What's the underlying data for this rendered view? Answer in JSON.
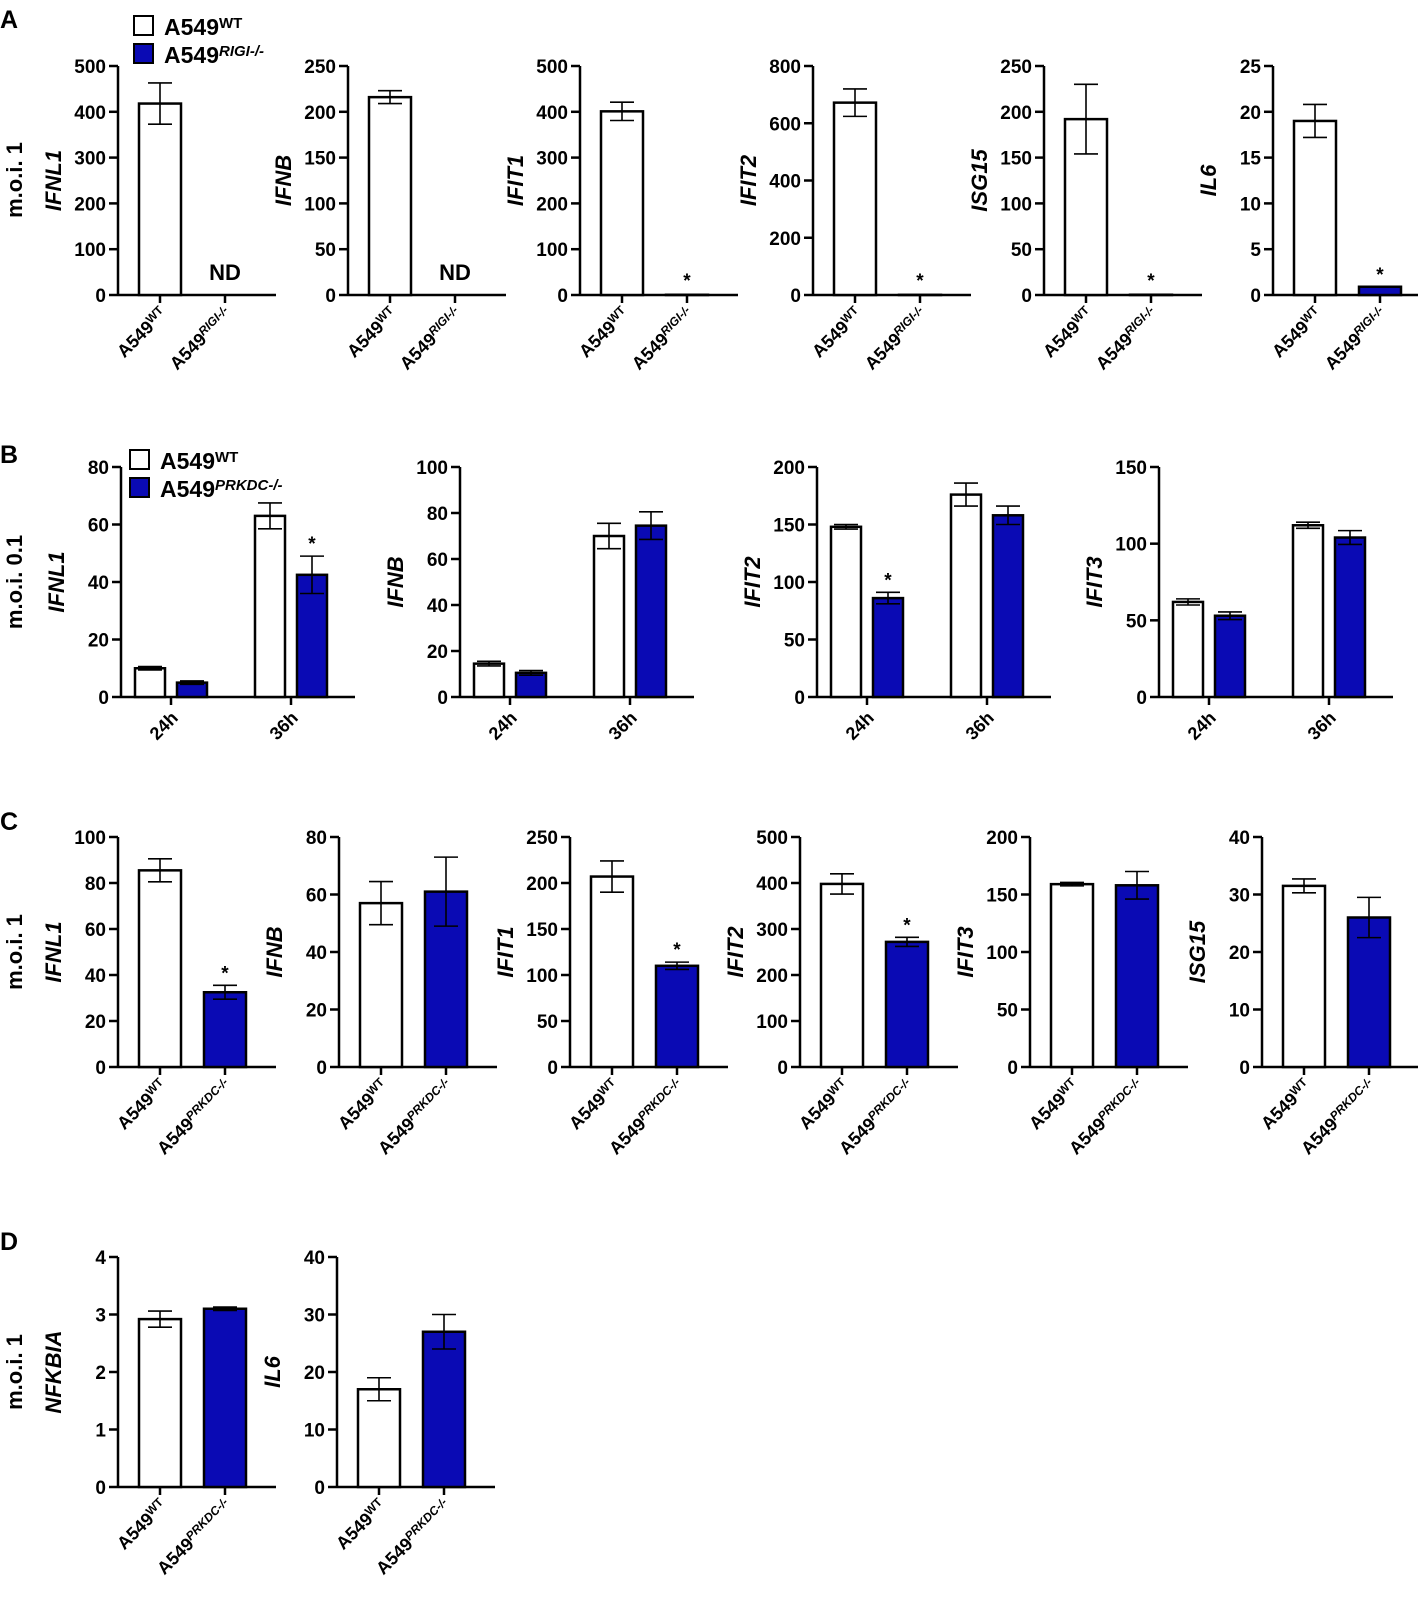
{
  "figure": {
    "colors": {
      "wt_fill": "#ffffff",
      "ko_fill": "#0a0ab4",
      "stroke": "#000000"
    },
    "panels": [
      {
        "letter": "A",
        "moi": "m.o.i. 1"
      },
      {
        "letter": "B",
        "moi": "m.o.i. 0.1"
      },
      {
        "letter": "C",
        "moi": "m.o.i. 1"
      },
      {
        "letter": "D",
        "moi": "m.o.i. 1"
      }
    ],
    "legends": [
      {
        "wt_base": "A549",
        "wt_sup": "WT",
        "ko_base": "A549",
        "ko_sup": "RIGI-/-"
      },
      {
        "wt_base": "A549",
        "wt_sup": "WT",
        "ko_base": "A549",
        "ko_sup": "PRKDC-/-"
      }
    ]
  },
  "chart_data": [
    {
      "panel": "A",
      "type": "bar",
      "ylabel": "IFNL1",
      "ylim": [
        0,
        500
      ],
      "yticks": [
        0,
        100,
        200,
        300,
        400,
        500
      ],
      "mode": "single",
      "categories": [
        {
          "base": "A549",
          "sup": "WT"
        },
        {
          "base": "A549",
          "sup": "RIGI-/-"
        }
      ],
      "values": [
        418,
        null
      ],
      "errors": [
        45,
        null
      ],
      "annotations": [
        "",
        "ND"
      ]
    },
    {
      "panel": "A",
      "type": "bar",
      "ylabel": "IFNB",
      "ylim": [
        0,
        250
      ],
      "yticks": [
        0,
        50,
        100,
        150,
        200,
        250
      ],
      "mode": "single",
      "categories": [
        {
          "base": "A549",
          "sup": "WT"
        },
        {
          "base": "A549",
          "sup": "RIGI-/-"
        }
      ],
      "values": [
        216,
        null
      ],
      "errors": [
        7,
        null
      ],
      "annotations": [
        "",
        "ND"
      ]
    },
    {
      "panel": "A",
      "type": "bar",
      "ylabel": "IFIT1",
      "ylim": [
        0,
        500
      ],
      "yticks": [
        0,
        100,
        200,
        300,
        400,
        500
      ],
      "mode": "single",
      "categories": [
        {
          "base": "A549",
          "sup": "WT"
        },
        {
          "base": "A549",
          "sup": "RIGI-/-"
        }
      ],
      "values": [
        401,
        0.5
      ],
      "errors": [
        20,
        0
      ],
      "annotations": [
        "",
        "*"
      ]
    },
    {
      "panel": "A",
      "type": "bar",
      "ylabel": "IFIT2",
      "ylim": [
        0,
        800
      ],
      "yticks": [
        0,
        200,
        400,
        600,
        800
      ],
      "mode": "single",
      "categories": [
        {
          "base": "A549",
          "sup": "WT"
        },
        {
          "base": "A549",
          "sup": "RIGI-/-"
        }
      ],
      "values": [
        672,
        0.5
      ],
      "errors": [
        48,
        0
      ],
      "annotations": [
        "",
        "*"
      ]
    },
    {
      "panel": "A",
      "type": "bar",
      "ylabel": "ISG15",
      "ylim": [
        0,
        250
      ],
      "yticks": [
        0,
        50,
        100,
        150,
        200,
        250
      ],
      "mode": "single",
      "categories": [
        {
          "base": "A549",
          "sup": "WT"
        },
        {
          "base": "A549",
          "sup": "RIGI-/-"
        }
      ],
      "values": [
        192,
        0.3
      ],
      "errors": [
        38,
        0
      ],
      "annotations": [
        "",
        "*"
      ]
    },
    {
      "panel": "A",
      "type": "bar",
      "ylabel": "IL6",
      "ylim": [
        0,
        25
      ],
      "yticks": [
        0,
        5,
        10,
        15,
        20,
        25
      ],
      "mode": "single",
      "categories": [
        {
          "base": "A549",
          "sup": "WT"
        },
        {
          "base": "A549",
          "sup": "RIGI-/-"
        }
      ],
      "values": [
        19,
        0.9
      ],
      "errors": [
        1.8,
        0
      ],
      "annotations": [
        "",
        "*"
      ]
    },
    {
      "panel": "B",
      "type": "bar",
      "ylabel": "IFNL1",
      "ylim": [
        0,
        80
      ],
      "yticks": [
        0,
        20,
        40,
        60,
        80
      ],
      "mode": "grouped",
      "categories": [
        "24h",
        "36h"
      ],
      "series": [
        {
          "name": "A549WT",
          "values": [
            10,
            63
          ],
          "errors": [
            0.6,
            4.5
          ]
        },
        {
          "name": "A549PRKDC-/-",
          "values": [
            5,
            42.5
          ],
          "errors": [
            0.6,
            6.5
          ]
        }
      ],
      "annotations": [
        "",
        "",
        "",
        "*"
      ]
    },
    {
      "panel": "B",
      "type": "bar",
      "ylabel": "IFNB",
      "ylim": [
        0,
        100
      ],
      "yticks": [
        0,
        20,
        40,
        60,
        80,
        100
      ],
      "mode": "grouped",
      "categories": [
        "24h",
        "36h"
      ],
      "series": [
        {
          "name": "A549WT",
          "values": [
            14.5,
            70
          ],
          "errors": [
            1,
            5.5
          ]
        },
        {
          "name": "A549PRKDC-/-",
          "values": [
            10.5,
            74.5
          ],
          "errors": [
            1,
            6
          ]
        }
      ],
      "annotations": [
        "",
        "",
        "",
        ""
      ]
    },
    {
      "panel": "B",
      "type": "bar",
      "ylabel": "IFIT2",
      "ylim": [
        0,
        200
      ],
      "yticks": [
        0,
        50,
        100,
        150,
        200
      ],
      "mode": "grouped",
      "categories": [
        "24h",
        "36h"
      ],
      "series": [
        {
          "name": "A549WT",
          "values": [
            148,
            176
          ],
          "errors": [
            2,
            10
          ]
        },
        {
          "name": "A549PRKDC-/-",
          "values": [
            86,
            158
          ],
          "errors": [
            5,
            8
          ]
        }
      ],
      "annotations": [
        "",
        "*",
        "",
        ""
      ]
    },
    {
      "panel": "B",
      "type": "bar",
      "ylabel": "IFIT3",
      "ylim": [
        0,
        150
      ],
      "yticks": [
        0,
        50,
        100,
        150
      ],
      "mode": "grouped",
      "categories": [
        "24h",
        "36h"
      ],
      "series": [
        {
          "name": "A549WT",
          "values": [
            62,
            112
          ],
          "errors": [
            2,
            2
          ]
        },
        {
          "name": "A549PRKDC-/-",
          "values": [
            53,
            104
          ],
          "errors": [
            2.5,
            4.5
          ]
        }
      ],
      "annotations": [
        "",
        "",
        "",
        ""
      ]
    },
    {
      "panel": "C",
      "type": "bar",
      "ylabel": "IFNL1",
      "ylim": [
        0,
        100
      ],
      "yticks": [
        0,
        20,
        40,
        60,
        80,
        100
      ],
      "mode": "single",
      "categories": [
        {
          "base": "A549",
          "sup": "WT"
        },
        {
          "base": "A549",
          "sup": "PRKDC-/-"
        }
      ],
      "values": [
        85.5,
        32.5
      ],
      "errors": [
        5,
        3
      ],
      "annotations": [
        "",
        "*"
      ]
    },
    {
      "panel": "C",
      "type": "bar",
      "ylabel": "IFNB",
      "ylim": [
        0,
        80
      ],
      "yticks": [
        0,
        20,
        40,
        60,
        80
      ],
      "mode": "single",
      "categories": [
        {
          "base": "A549",
          "sup": "WT"
        },
        {
          "base": "A549",
          "sup": "PRKDC-/-"
        }
      ],
      "values": [
        57,
        61
      ],
      "errors": [
        7.5,
        12
      ],
      "annotations": [
        "",
        ""
      ]
    },
    {
      "panel": "C",
      "type": "bar",
      "ylabel": "IFIT1",
      "ylim": [
        0,
        250
      ],
      "yticks": [
        0,
        50,
        100,
        150,
        200,
        250
      ],
      "mode": "single",
      "categories": [
        {
          "base": "A549",
          "sup": "WT"
        },
        {
          "base": "A549",
          "sup": "PRKDC-/-"
        }
      ],
      "values": [
        207,
        110
      ],
      "errors": [
        17,
        4
      ],
      "annotations": [
        "",
        "*"
      ]
    },
    {
      "panel": "C",
      "type": "bar",
      "ylabel": "IFIT2",
      "ylim": [
        0,
        500
      ],
      "yticks": [
        0,
        100,
        200,
        300,
        400,
        500
      ],
      "mode": "single",
      "categories": [
        {
          "base": "A549",
          "sup": "WT"
        },
        {
          "base": "A549",
          "sup": "PRKDC-/-"
        }
      ],
      "values": [
        398,
        272
      ],
      "errors": [
        22,
        10
      ],
      "annotations": [
        "",
        "*"
      ]
    },
    {
      "panel": "C",
      "type": "bar",
      "ylabel": "IFIT3",
      "ylim": [
        0,
        200
      ],
      "yticks": [
        0,
        50,
        100,
        150,
        200
      ],
      "mode": "single",
      "categories": [
        {
          "base": "A549",
          "sup": "WT"
        },
        {
          "base": "A549",
          "sup": "PRKDC-/-"
        }
      ],
      "values": [
        159,
        158
      ],
      "errors": [
        1.5,
        12
      ],
      "annotations": [
        "",
        ""
      ]
    },
    {
      "panel": "C",
      "type": "bar",
      "ylabel": "ISG15",
      "ylim": [
        0,
        40
      ],
      "yticks": [
        0,
        10,
        20,
        30,
        40
      ],
      "mode": "single",
      "categories": [
        {
          "base": "A549",
          "sup": "WT"
        },
        {
          "base": "A549",
          "sup": "PRKDC-/-"
        }
      ],
      "values": [
        31.5,
        26
      ],
      "errors": [
        1.2,
        3.5
      ],
      "annotations": [
        "",
        ""
      ]
    },
    {
      "panel": "D",
      "type": "bar",
      "ylabel": "NFKBIA",
      "ylim": [
        0,
        4
      ],
      "yticks": [
        0,
        1,
        2,
        3,
        4
      ],
      "mode": "single",
      "categories": [
        {
          "base": "A549",
          "sup": "WT"
        },
        {
          "base": "A549",
          "sup": "PRKDC-/-"
        }
      ],
      "values": [
        2.92,
        3.1
      ],
      "errors": [
        0.14,
        0.03
      ],
      "annotations": [
        "",
        ""
      ]
    },
    {
      "panel": "D",
      "type": "bar",
      "ylabel": "IL6",
      "ylim": [
        0,
        40
      ],
      "yticks": [
        0,
        10,
        20,
        30,
        40
      ],
      "mode": "single",
      "categories": [
        {
          "base": "A549",
          "sup": "WT"
        },
        {
          "base": "A549",
          "sup": "PRKDC-/-"
        }
      ],
      "values": [
        17,
        27
      ],
      "errors": [
        2,
        3
      ],
      "annotations": [
        "",
        ""
      ]
    }
  ]
}
